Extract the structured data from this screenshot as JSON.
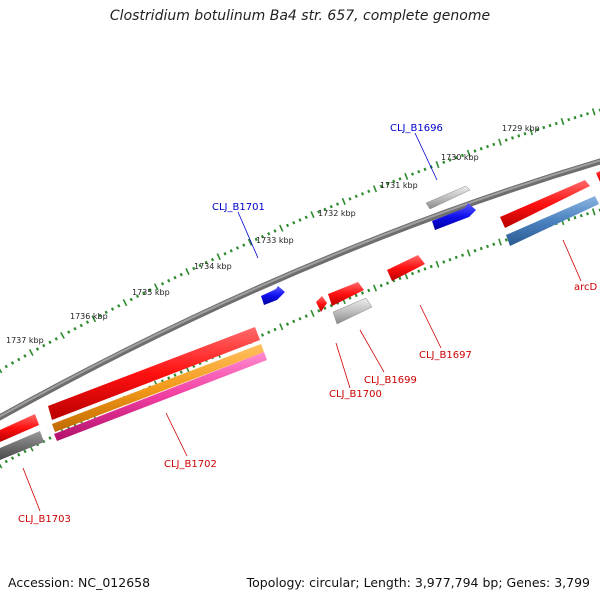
{
  "title": "Clostridium botulinum Ba4 str. 657, complete genome",
  "footer": {
    "accession": "Accession: NC_012658",
    "summary": "Topology: circular; Length: 3,977,794 bp; Genes: 3,799"
  },
  "colors": {
    "backbone": "#7a7a7a",
    "tick": "#2e8b2e",
    "forward_label": "#0000cc",
    "reverse_label": "#cc0000",
    "gene_red": "#ff1a1a",
    "gene_blue": "#1a1aee",
    "gene_gray": "#bdbdbd",
    "gene_darkgray": "#6e6e6e",
    "gene_steelblue": "#4a82c0",
    "gene_orange": "#f39a1a",
    "gene_pink": "#f03ca0"
  },
  "scale_labels": [
    "1729 kbp",
    "1730 kbp",
    "1731 kbp",
    "1732 kbp",
    "1733 kbp",
    "1734 kbp",
    "1735 kbp",
    "1736 kbp",
    "1737 kbp"
  ],
  "gene_labels": {
    "CLJ_B1696": "CLJ_B1696",
    "CLJ_B1701": "CLJ_B1701",
    "arcD": "arcD",
    "CLJ_B1697": "CLJ_B1697",
    "CLJ_B1699": "CLJ_B1699",
    "CLJ_B1700": "CLJ_B1700",
    "CLJ_B1702": "CLJ_B1702",
    "CLJ_B1703": "CLJ_B1703"
  }
}
